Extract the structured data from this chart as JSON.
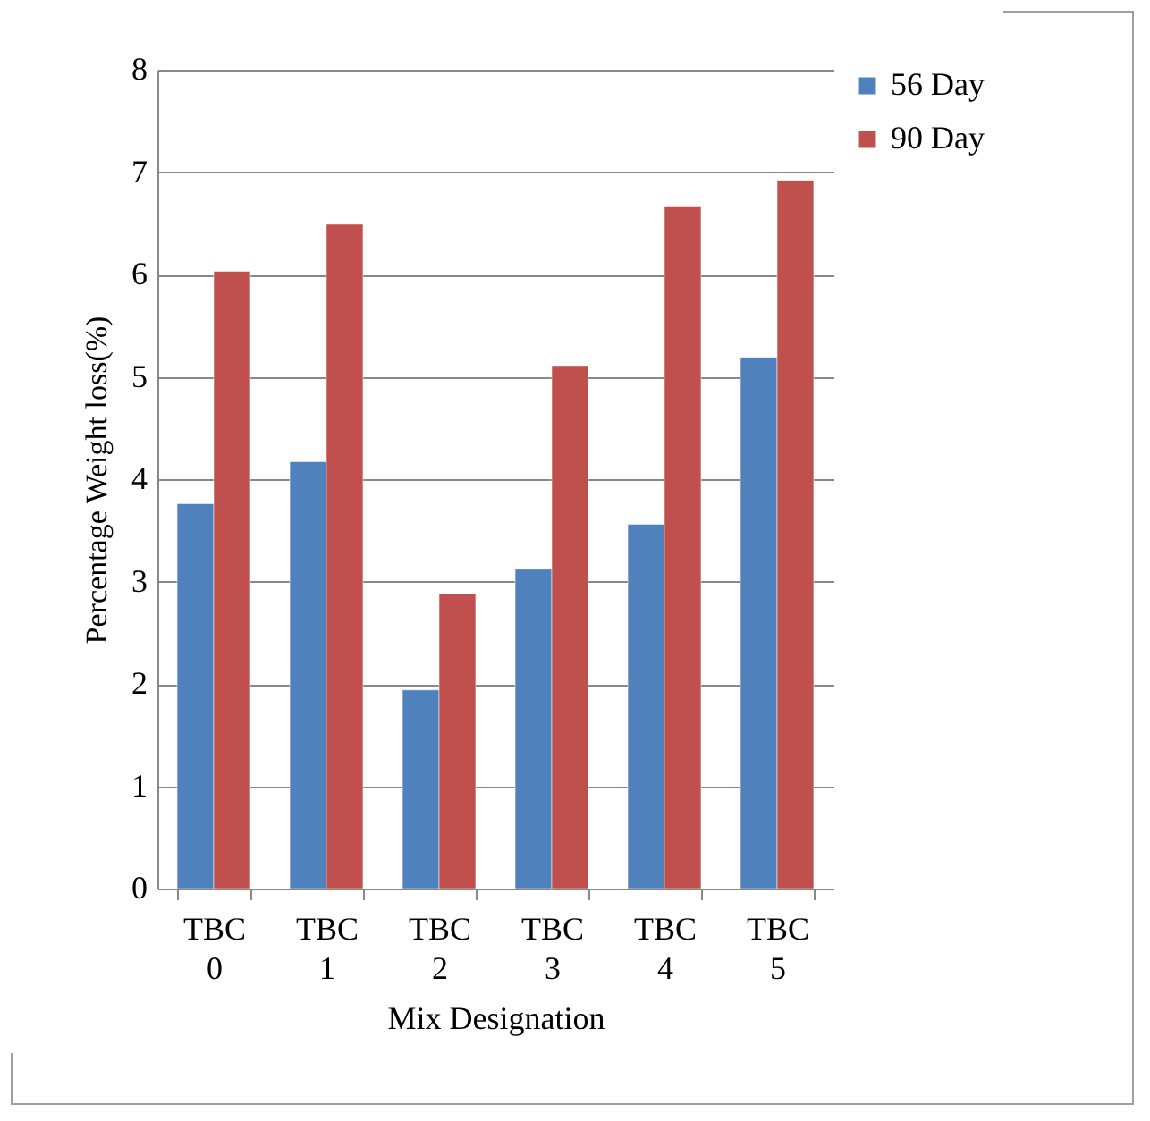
{
  "chart_data": {
    "type": "bar",
    "xlabel": "Mix Designation",
    "ylabel": "Percentage Weight loss(%)",
    "categories": [
      "TBC 0",
      "TBC 1",
      "TBC 2",
      "TBC 3",
      "TBC 4",
      "TBC 5"
    ],
    "series": [
      {
        "name": "56 Day",
        "color": "#4f81bd",
        "values": [
          3.76,
          4.17,
          1.94,
          3.12,
          3.56,
          5.19
        ]
      },
      {
        "name": "90 Day",
        "color": "#c0504d",
        "values": [
          6.03,
          6.49,
          2.88,
          5.11,
          6.66,
          6.92
        ]
      }
    ],
    "ylim": [
      0,
      8
    ],
    "yticks": [
      0,
      1,
      2,
      3,
      4,
      5,
      6,
      7,
      8
    ],
    "grid": "y",
    "legend": "right"
  }
}
